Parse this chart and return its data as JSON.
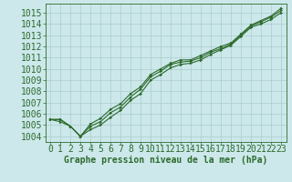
{
  "title": "Graphe pression niveau de la mer (hPa)",
  "background_color": "#cce8ea",
  "grid_color": "#aacccc",
  "line_color": "#2d6a2d",
  "xlim": [
    -0.5,
    23.5
  ],
  "ylim": [
    1003.5,
    1015.8
  ],
  "xticks": [
    0,
    1,
    2,
    3,
    4,
    5,
    6,
    7,
    8,
    9,
    10,
    11,
    12,
    13,
    14,
    15,
    16,
    17,
    18,
    19,
    20,
    21,
    22,
    23
  ],
  "yticks": [
    1004,
    1005,
    1006,
    1007,
    1008,
    1009,
    1010,
    1011,
    1012,
    1013,
    1014,
    1015
  ],
  "line1": [
    1005.5,
    1005.5,
    1004.9,
    1004.0,
    1004.9,
    1005.3,
    1006.1,
    1006.6,
    1007.5,
    1008.2,
    1009.3,
    1009.8,
    1010.4,
    1010.6,
    1010.7,
    1011.0,
    1011.5,
    1011.8,
    1012.2,
    1013.0,
    1013.8,
    1014.2,
    1014.6,
    1015.2
  ],
  "line2": [
    1005.5,
    1005.3,
    1004.9,
    1004.0,
    1005.1,
    1005.6,
    1006.4,
    1006.9,
    1007.8,
    1008.4,
    1009.5,
    1010.0,
    1010.5,
    1010.8,
    1010.8,
    1011.2,
    1011.6,
    1012.0,
    1012.3,
    1013.1,
    1013.9,
    1014.3,
    1014.7,
    1015.4
  ],
  "line3": [
    1005.5,
    1005.5,
    1004.9,
    1004.0,
    1004.6,
    1005.0,
    1005.7,
    1006.3,
    1007.2,
    1007.8,
    1009.0,
    1009.5,
    1010.1,
    1010.4,
    1010.5,
    1010.8,
    1011.3,
    1011.7,
    1012.1,
    1012.9,
    1013.7,
    1014.0,
    1014.4,
    1015.0
  ],
  "tick_fontsize": 7,
  "xlabel_fontsize": 7,
  "marker_size": 2.0,
  "linewidth": 0.8
}
